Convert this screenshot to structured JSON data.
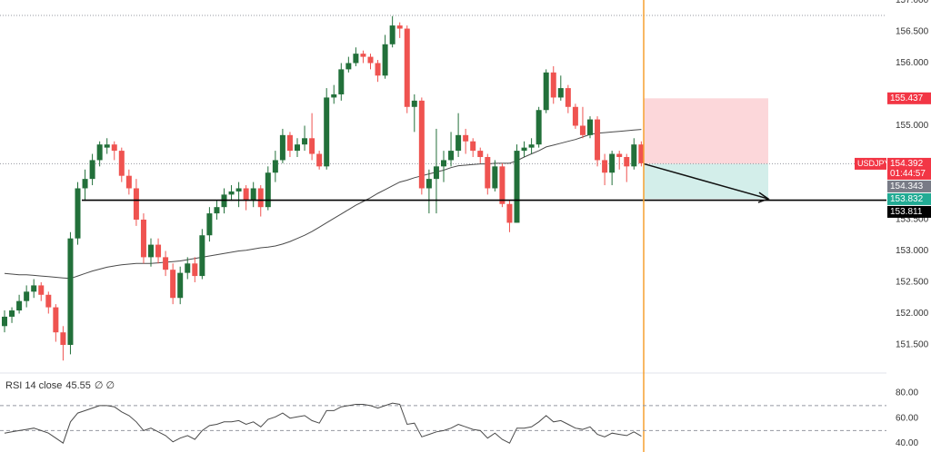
{
  "chart_data": [
    {
      "type": "candlestick",
      "symbol": "USDJPY",
      "ohlc": [
        [
          151.8,
          152.05,
          151.7,
          151.95
        ],
        [
          151.95,
          152.1,
          151.85,
          152.05
        ],
        [
          152.05,
          152.3,
          152.0,
          152.2
        ],
        [
          152.2,
          152.45,
          152.1,
          152.35
        ],
        [
          152.35,
          152.55,
          152.25,
          152.45
        ],
        [
          152.45,
          152.5,
          152.2,
          152.3
        ],
        [
          152.3,
          152.35,
          152.0,
          152.1
        ],
        [
          152.1,
          152.15,
          151.55,
          151.7
        ],
        [
          151.7,
          151.8,
          151.25,
          151.5
        ],
        [
          151.5,
          153.3,
          151.35,
          153.2
        ],
        [
          153.2,
          154.1,
          153.1,
          154.0
        ],
        [
          154.0,
          154.3,
          153.8,
          154.15
        ],
        [
          154.15,
          154.55,
          154.05,
          154.45
        ],
        [
          154.45,
          154.75,
          154.35,
          154.7
        ],
        [
          154.65,
          154.8,
          154.55,
          154.7
        ],
        [
          154.7,
          154.75,
          154.45,
          154.6
        ],
        [
          154.6,
          154.65,
          154.1,
          154.2
        ],
        [
          154.2,
          154.3,
          153.9,
          154.0
        ],
        [
          154.0,
          154.15,
          153.4,
          153.5
        ],
        [
          153.5,
          153.6,
          152.8,
          152.9
        ],
        [
          152.9,
          153.2,
          152.75,
          153.1
        ],
        [
          153.1,
          153.2,
          152.8,
          152.9
        ],
        [
          152.9,
          153.0,
          152.6,
          152.7
        ],
        [
          152.7,
          152.8,
          152.15,
          152.25
        ],
        [
          152.25,
          152.75,
          152.15,
          152.65
        ],
        [
          152.65,
          152.9,
          152.55,
          152.8
        ],
        [
          152.8,
          152.9,
          152.5,
          152.6
        ],
        [
          152.6,
          153.35,
          152.55,
          153.25
        ],
        [
          153.25,
          153.7,
          153.15,
          153.6
        ],
        [
          153.6,
          153.8,
          153.5,
          153.7
        ],
        [
          153.7,
          154.0,
          153.6,
          153.9
        ],
        [
          153.9,
          154.05,
          153.8,
          153.95
        ],
        [
          153.95,
          154.1,
          153.7,
          154.0
        ],
        [
          154.0,
          154.05,
          153.65,
          153.8
        ],
        [
          153.8,
          154.1,
          153.7,
          154.0
        ],
        [
          154.0,
          154.05,
          153.55,
          153.7
        ],
        [
          153.7,
          154.35,
          153.65,
          154.25
        ],
        [
          154.25,
          154.6,
          154.1,
          154.45
        ],
        [
          154.45,
          154.95,
          154.4,
          154.85
        ],
        [
          154.85,
          154.9,
          154.5,
          154.6
        ],
        [
          154.6,
          154.8,
          154.5,
          154.7
        ],
        [
          154.7,
          155.0,
          154.6,
          154.8
        ],
        [
          154.8,
          155.2,
          154.45,
          154.55
        ],
        [
          154.55,
          154.6,
          154.3,
          154.35
        ],
        [
          154.35,
          155.6,
          154.3,
          155.45
        ],
        [
          155.45,
          155.65,
          155.35,
          155.5
        ],
        [
          155.5,
          156.0,
          155.4,
          155.9
        ],
        [
          155.9,
          156.1,
          155.85,
          156.0
        ],
        [
          156.0,
          156.25,
          155.95,
          156.15
        ],
        [
          156.15,
          156.2,
          156.0,
          156.1
        ],
        [
          156.1,
          156.15,
          155.9,
          156.0
        ],
        [
          156.0,
          156.05,
          155.7,
          155.8
        ],
        [
          155.8,
          156.45,
          155.75,
          156.3
        ],
        [
          156.3,
          156.75,
          156.25,
          156.6
        ],
        [
          156.6,
          156.65,
          156.4,
          156.55
        ],
        [
          156.55,
          156.6,
          155.2,
          155.3
        ],
        [
          155.3,
          155.5,
          154.9,
          155.4
        ],
        [
          155.4,
          155.45,
          153.9,
          154.0
        ],
        [
          154.0,
          154.3,
          153.6,
          154.15
        ],
        [
          154.15,
          154.95,
          153.6,
          154.35
        ],
        [
          154.35,
          154.6,
          154.1,
          154.45
        ],
        [
          154.45,
          154.9,
          154.35,
          154.6
        ],
        [
          154.6,
          155.2,
          154.5,
          154.85
        ],
        [
          154.85,
          154.95,
          154.55,
          154.75
        ],
        [
          154.75,
          154.8,
          154.5,
          154.6
        ],
        [
          154.6,
          154.65,
          154.4,
          154.5
        ],
        [
          154.5,
          154.55,
          153.9,
          154.0
        ],
        [
          154.0,
          154.45,
          153.95,
          154.35
        ],
        [
          154.35,
          154.4,
          153.7,
          153.75
        ],
        [
          153.75,
          153.8,
          153.3,
          153.45
        ],
        [
          153.45,
          154.7,
          153.45,
          154.6
        ],
        [
          154.6,
          154.75,
          154.5,
          154.65
        ],
        [
          154.65,
          154.8,
          154.55,
          154.7
        ],
        [
          154.7,
          155.3,
          154.65,
          155.25
        ],
        [
          155.25,
          155.9,
          155.2,
          155.85
        ],
        [
          155.85,
          155.95,
          155.35,
          155.45
        ],
        [
          155.45,
          155.8,
          155.4,
          155.6
        ],
        [
          155.6,
          155.65,
          155.2,
          155.3
        ],
        [
          155.3,
          155.35,
          154.95,
          155.0
        ],
        [
          155.0,
          155.3,
          154.8,
          154.85
        ],
        [
          154.85,
          155.15,
          154.8,
          155.1
        ],
        [
          155.1,
          155.15,
          154.35,
          154.45
        ],
        [
          154.45,
          154.55,
          154.05,
          154.25
        ],
        [
          154.25,
          154.6,
          154.05,
          154.55
        ],
        [
          154.55,
          154.6,
          154.3,
          154.5
        ],
        [
          154.5,
          154.55,
          154.1,
          154.35
        ],
        [
          154.35,
          154.8,
          154.3,
          154.7
        ],
        [
          154.7,
          154.75,
          154.35,
          154.4
        ]
      ],
      "ma": [
        152.64,
        152.63,
        152.62,
        152.62,
        152.61,
        152.6,
        152.59,
        152.58,
        152.57,
        152.56,
        152.6,
        152.64,
        152.68,
        152.71,
        152.74,
        152.76,
        152.78,
        152.79,
        152.8,
        152.8,
        152.8,
        152.81,
        152.82,
        152.83,
        152.84,
        152.86,
        152.88,
        152.9,
        152.92,
        152.94,
        152.96,
        152.98,
        153.0,
        153.01,
        153.03,
        153.05,
        153.06,
        153.08,
        153.11,
        153.15,
        153.2,
        153.25,
        153.31,
        153.38,
        153.45,
        153.52,
        153.59,
        153.66,
        153.73,
        153.79,
        153.85,
        153.92,
        153.98,
        154.04,
        154.1,
        154.13,
        154.17,
        154.2,
        154.23,
        154.26,
        154.29,
        154.33,
        154.36,
        154.37,
        154.38,
        154.39,
        154.39,
        154.4,
        154.4,
        154.4,
        154.44,
        154.5,
        154.55,
        154.6,
        154.66,
        154.69,
        154.72,
        154.75,
        154.78,
        154.82,
        154.86,
        154.88,
        154.89,
        154.9,
        154.91,
        154.92,
        154.93,
        154.94
      ],
      "up_color": "#22703a",
      "down_color": "#ef5350",
      "ma_color": "#4a4a4a",
      "ylim": [
        151.065,
        157.007
      ],
      "yticks": [
        {
          "value": 157,
          "label": "157.000"
        },
        {
          "value": 156.5,
          "label": "156.500"
        },
        {
          "value": 156,
          "label": "156.000"
        },
        {
          "value": 155,
          "label": "155.000"
        },
        {
          "value": 153.5,
          "label": "153.500"
        },
        {
          "value": 153,
          "label": "153.000"
        },
        {
          "value": 152.5,
          "label": "152.500"
        },
        {
          "value": 152,
          "label": "152.000"
        },
        {
          "value": 151.5,
          "label": "151.500"
        }
      ],
      "levels": {
        "high": 156.76,
        "stop": 155.437,
        "entry": 154.392,
        "countdown": "01:44:57",
        "bid": 154.343,
        "target": 153.832,
        "support": 153.811
      },
      "stop_color": "#f23645",
      "bid_color": "#787b86",
      "target_color": "#22ab94",
      "support_color": "#000000",
      "time_line_color": "#f5a030"
    },
    {
      "type": "rsi",
      "title": "RSI 14 close",
      "flags": "∅ ∅",
      "values": [
        48,
        49,
        50,
        51,
        52,
        50,
        48,
        44,
        40,
        57,
        64,
        66,
        68,
        70,
        70,
        69,
        65,
        62,
        57,
        50,
        52,
        49,
        46,
        41,
        44,
        46,
        43,
        50,
        54,
        55,
        57,
        57,
        58,
        55,
        57,
        53,
        59,
        61,
        64,
        60,
        61,
        62,
        58,
        56,
        66,
        66,
        69,
        70,
        71,
        71,
        70,
        68,
        70,
        72,
        71,
        55,
        56,
        45,
        47,
        49,
        50,
        52,
        55,
        53,
        51,
        50,
        44,
        48,
        43,
        40,
        52,
        52,
        53,
        57,
        62,
        57,
        58,
        55,
        52,
        51,
        53,
        47,
        45,
        48,
        47,
        46,
        49,
        45.55
      ],
      "color": "#4a4a4a",
      "levels": [
        70,
        50
      ],
      "ylim": [
        32.9,
        95.3
      ],
      "yticks": [
        {
          "value": 80,
          "label": "80.00"
        },
        {
          "value": 60,
          "label": "60.00"
        },
        {
          "value": 40,
          "label": "40.00"
        }
      ]
    }
  ]
}
